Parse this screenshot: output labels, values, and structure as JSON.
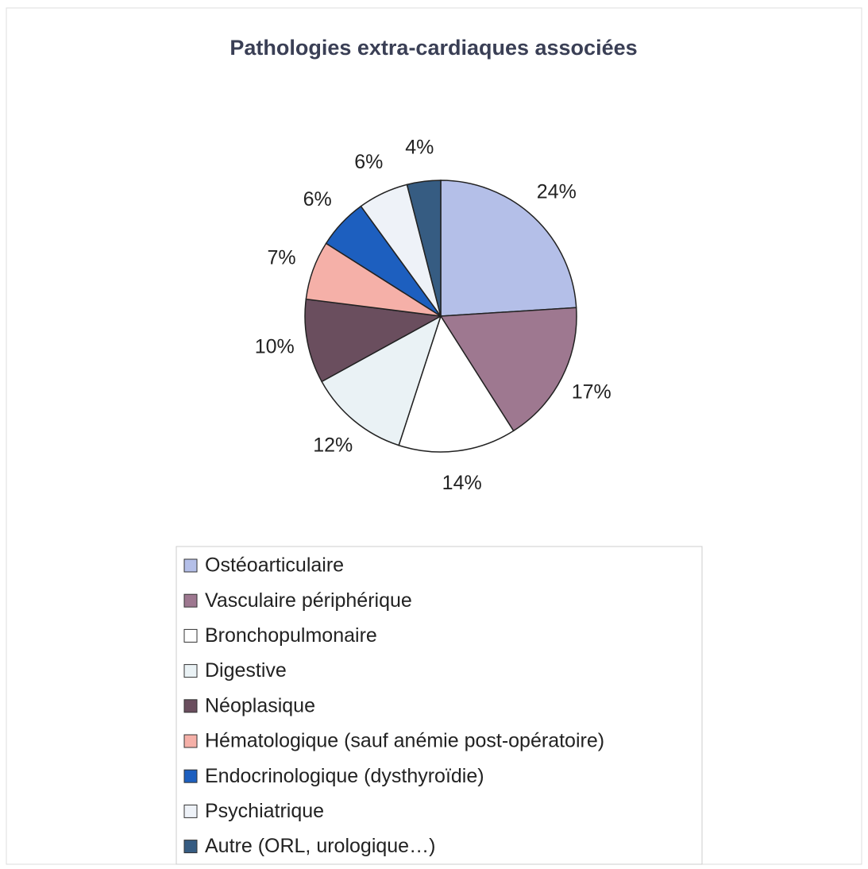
{
  "chart_data": {
    "type": "pie",
    "title": "Pathologies extra-cardiaques associées",
    "categories": [
      "Ostéoarticulaire",
      "Vasculaire périphérique",
      "Bronchopulmonaire",
      "Digestive",
      "Néoplasique",
      "Hématologique (sauf anémie post-opératoire)",
      "Endocrinologique (dysthyroïdie)",
      "Psychiatrique",
      "Autre (ORL, urologique…)"
    ],
    "values": [
      24,
      17,
      14,
      12,
      10,
      7,
      6,
      6,
      4
    ],
    "value_labels": [
      "24%",
      "17%",
      "14%",
      "12%",
      "10%",
      "7%",
      "6%",
      "6%",
      "4%"
    ],
    "colors": [
      "#b4bfe8",
      "#9e7890",
      "#ffffff",
      "#eaf2f5",
      "#6a4e5e",
      "#f5b0a8",
      "#1d5fbf",
      "#eef2f8",
      "#365c82"
    ],
    "legend": "bottom"
  }
}
